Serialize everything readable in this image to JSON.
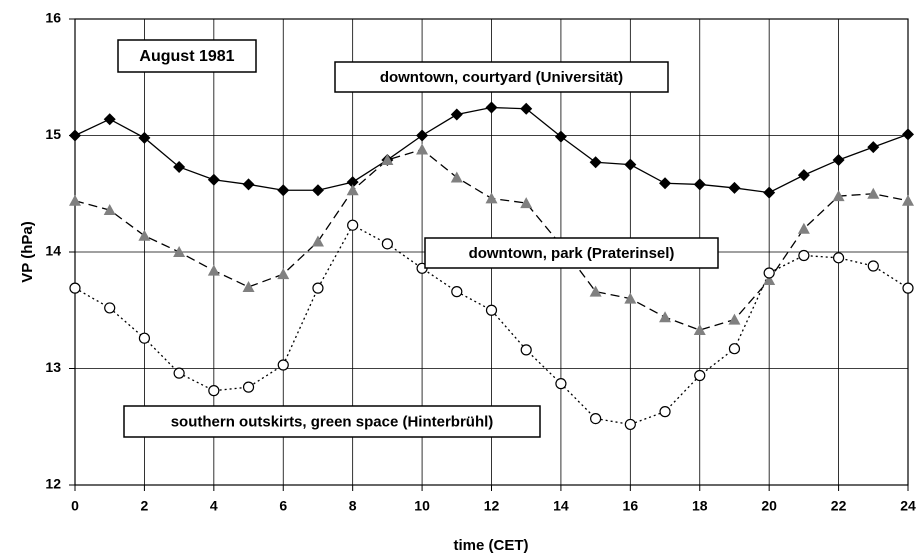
{
  "chart_data": {
    "type": "line",
    "title": "August 1981",
    "xlabel": "time   (CET)",
    "ylabel": "VP   (hPa)",
    "x": [
      0,
      1,
      2,
      3,
      4,
      5,
      6,
      7,
      8,
      9,
      10,
      11,
      12,
      13,
      14,
      15,
      16,
      17,
      18,
      19,
      20,
      21,
      22,
      23,
      24
    ],
    "xlim": [
      0,
      24
    ],
    "xticks": [
      0,
      2,
      4,
      6,
      8,
      10,
      12,
      14,
      16,
      18,
      20,
      22,
      24
    ],
    "ylim": [
      12,
      16
    ],
    "yticks": [
      12,
      13,
      14,
      15,
      16
    ],
    "grid": true,
    "series": [
      {
        "name": "downtown, courtyard (Universität)",
        "color": "#000000",
        "marker": "diamond",
        "line": "solid",
        "values": [
          15.0,
          15.14,
          14.98,
          14.73,
          14.62,
          14.58,
          14.53,
          14.53,
          14.6,
          14.79,
          15.0,
          15.18,
          15.24,
          15.23,
          14.99,
          14.77,
          14.75,
          14.59,
          14.58,
          14.55,
          14.51,
          14.66,
          14.79,
          14.9,
          15.01
        ]
      },
      {
        "name": "downtown, park (Praterinsel)",
        "color": "#808080",
        "marker": "triangle",
        "line": "dashed",
        "values": [
          14.44,
          14.36,
          14.14,
          14.0,
          13.84,
          13.7,
          13.81,
          14.09,
          14.53,
          14.79,
          14.88,
          14.64,
          14.46,
          14.42,
          14.06,
          13.66,
          13.6,
          13.44,
          13.33,
          13.42,
          13.76,
          14.2,
          14.48,
          14.5,
          14.44
        ]
      },
      {
        "name": "southern outskirts, green space (Hinterbrühl)",
        "color": "#ffffff",
        "marker": "circle",
        "line": "dotted",
        "values": [
          13.69,
          13.52,
          13.26,
          12.96,
          12.81,
          12.84,
          13.03,
          13.69,
          14.23,
          14.07,
          13.86,
          13.66,
          13.5,
          13.16,
          12.87,
          12.57,
          12.52,
          12.63,
          12.94,
          13.17,
          13.82,
          13.97,
          13.95,
          13.88,
          13.69
        ]
      }
    ]
  }
}
